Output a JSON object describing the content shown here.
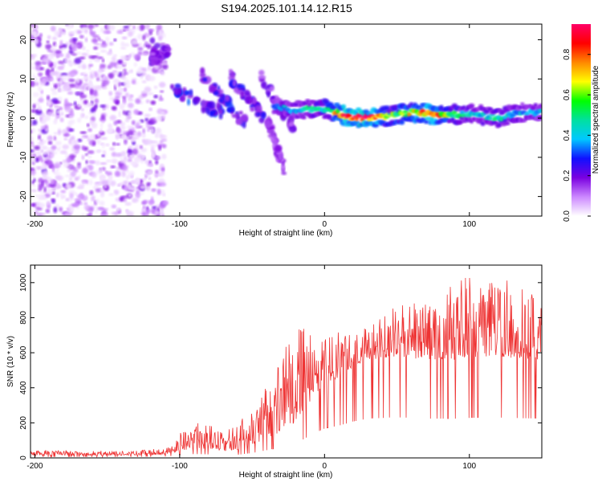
{
  "figure": {
    "title": "S194.2025.101.14.12.R15"
  },
  "chart_data": [
    {
      "type": "heatmap",
      "xlabel": "Height of straight line (km)",
      "ylabel": "Frequency (Hz)",
      "xlim": [
        -203,
        150
      ],
      "ylim": [
        -25,
        24
      ],
      "xticks": [
        -200,
        -100,
        0,
        100
      ],
      "yticks": [
        -20,
        -10,
        0,
        10,
        20
      ],
      "colorbar": {
        "label": "Normalized spectral amplitude",
        "range": [
          0,
          0.95
        ],
        "ticks": [
          0.0,
          0.2,
          0.4,
          0.6,
          0.8
        ],
        "colors": [
          "#ffffff",
          "#cc88ff",
          "#7a00e0",
          "#1010ff",
          "#00c8ff",
          "#00e0a0",
          "#00ff00",
          "#ffff00",
          "#ff8800",
          "#ff0000",
          "#ff0066"
        ]
      },
      "scatter_region": {
        "x": [
          -203,
          -110
        ],
        "y": [
          -25,
          24
        ],
        "amplitude": [
          0.02,
          0.22
        ]
      },
      "ridges": [
        {
          "x": [
            -120,
            -108
          ],
          "y": [
            15,
            17
          ],
          "amplitude": 0.22
        },
        {
          "x": [
            -107,
            -70
          ],
          "y": [
            8,
            1
          ],
          "amplitude": 0.3
        },
        {
          "x": [
            -85,
            -55
          ],
          "y": [
            11,
            -1
          ],
          "amplitude": 0.28
        },
        {
          "x": [
            -68,
            -42
          ],
          "y": [
            12,
            0
          ],
          "amplitude": 0.27
        },
        {
          "x": [
            -45,
            -20
          ],
          "y": [
            11,
            -3
          ],
          "amplitude": 0.22
        },
        {
          "x": [
            -40,
            -28
          ],
          "y": [
            0,
            -13
          ],
          "amplitude": 0.18
        }
      ],
      "band": {
        "x": [
          -35,
          -20,
          0,
          15,
          30,
          45,
          60,
          75,
          90,
          105,
          120,
          135,
          150
        ],
        "center": [
          3,
          2,
          2.5,
          0.5,
          0,
          0.5,
          1.5,
          1,
          1,
          1,
          0,
          1.5,
          1.5
        ],
        "amplitude": [
          0.35,
          0.42,
          0.5,
          0.88,
          0.92,
          0.55,
          0.7,
          0.85,
          0.5,
          0.42,
          0.48,
          0.4,
          0.38
        ]
      }
    },
    {
      "type": "line",
      "xlabel": "Height of straight line (km)",
      "ylabel": "SNR (10 * v/v)",
      "xlim": [
        -203,
        150
      ],
      "ylim": [
        0,
        1100
      ],
      "xticks": [
        -200,
        -100,
        0,
        100
      ],
      "yticks": [
        0,
        200,
        400,
        600,
        800,
        1000
      ],
      "color": "#ee3333",
      "envelope": {
        "x": [
          -203,
          -130,
          -110,
          -100,
          -90,
          -80,
          -70,
          -60,
          -50,
          -40,
          -30,
          -20,
          -10,
          0,
          10,
          20,
          30,
          50,
          70,
          90,
          110,
          130,
          150
        ],
        "baseline": [
          15,
          15,
          20,
          40,
          55,
          50,
          40,
          45,
          70,
          110,
          150,
          200,
          320,
          420,
          460,
          520,
          560,
          580,
          560,
          560,
          580,
          570,
          560
        ],
        "peak": [
          45,
          40,
          60,
          150,
          200,
          190,
          150,
          200,
          280,
          420,
          580,
          760,
          720,
          700,
          730,
          780,
          800,
          880,
          900,
          1000,
          1080,
          1000,
          900
        ]
      }
    }
  ]
}
